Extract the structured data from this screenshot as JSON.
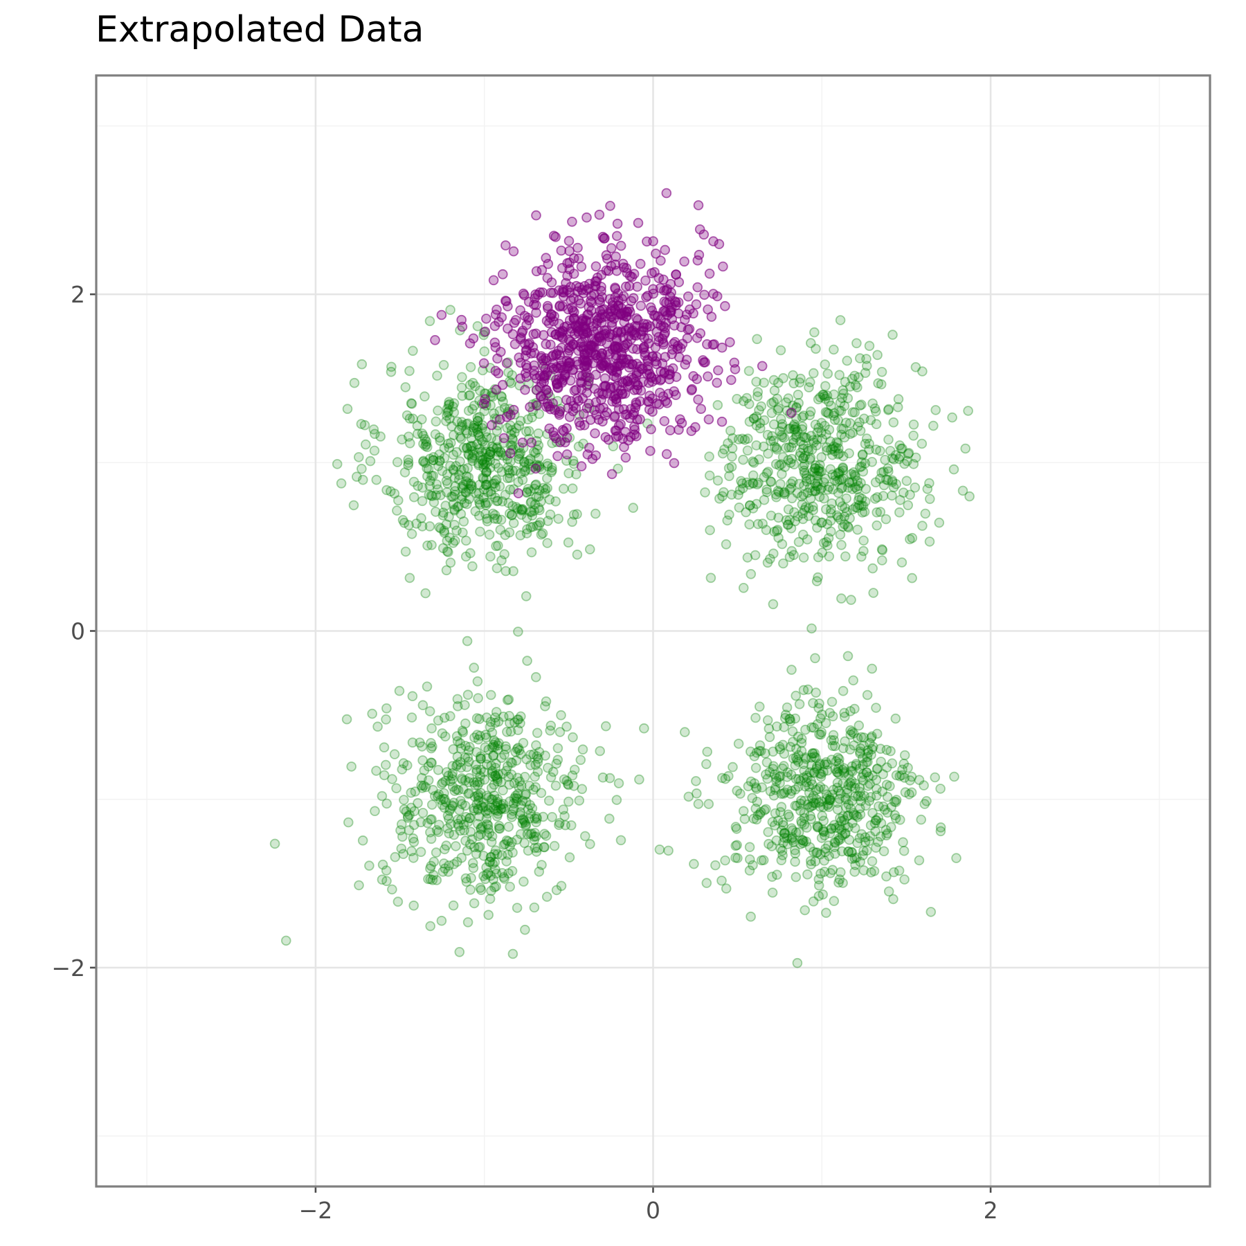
{
  "chart_data": {
    "type": "scatter",
    "title": "Extrapolated Data",
    "xlabel": "",
    "ylabel": "",
    "xlim": [
      -3.3,
      3.3
    ],
    "ylim": [
      -3.3,
      3.3
    ],
    "x_major_ticks": [
      -2,
      0,
      2
    ],
    "x_minor_ticks": [
      -3,
      -1,
      1,
      3
    ],
    "y_major_ticks": [
      -2,
      0,
      2
    ],
    "y_minor_ticks": [
      -3,
      -1,
      1,
      3
    ],
    "x_tick_labels": [
      "−2",
      "0",
      "2"
    ],
    "y_tick_labels": [
      "−2",
      "0",
      "2"
    ],
    "grid": true,
    "legend": "none",
    "series": [
      {
        "color": "#008000",
        "opacity": 0.18,
        "points_per_cluster": 560,
        "spread": 0.3,
        "clusters": [
          {
            "center": [
              -1.0,
              1.0
            ]
          },
          {
            "center": [
              1.0,
              1.0
            ]
          },
          {
            "center": [
              -1.0,
              -1.0
            ]
          },
          {
            "center": [
              1.0,
              -1.0
            ]
          }
        ]
      },
      {
        "color": "#800080",
        "opacity": 0.32,
        "points_per_cluster": 850,
        "spread": 0.3,
        "clusters": [
          {
            "center": [
              -0.3,
              1.7
            ]
          }
        ]
      }
    ]
  }
}
